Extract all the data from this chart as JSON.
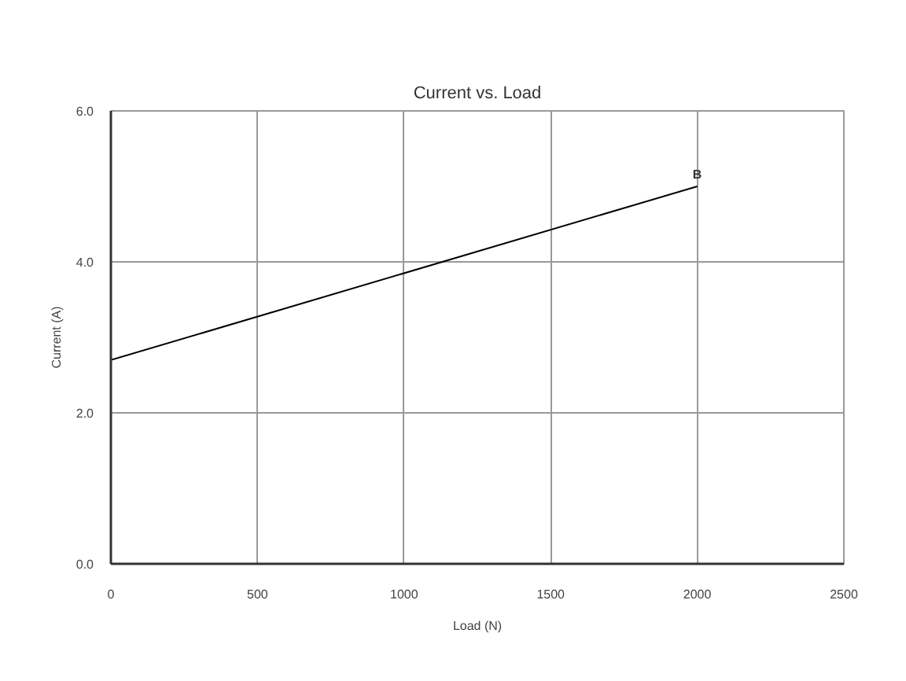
{
  "chart_data": {
    "type": "line",
    "title": "Current vs. Load",
    "xlabel": "Load (N)",
    "ylabel": "Current (A)",
    "x": [
      0,
      2000
    ],
    "series": [
      {
        "color": "#000000",
        "values": [
          2.7,
          5.0
        ]
      }
    ],
    "xlim": [
      0,
      2500
    ],
    "xticks": [
      0,
      500,
      1000,
      1500,
      2000,
      2500
    ],
    "ylim": [
      0,
      6
    ],
    "yticks": [
      {
        "value": 0,
        "label": "0.0"
      },
      {
        "value": 2,
        "label": "2.0"
      },
      {
        "value": 4,
        "label": "4.0"
      },
      {
        "value": 6,
        "label": "6.0"
      }
    ],
    "grid": true,
    "marker": "none",
    "line_style": "solid",
    "annotations": [
      {
        "text": "B",
        "x": 2000,
        "y": 5.0
      }
    ]
  }
}
